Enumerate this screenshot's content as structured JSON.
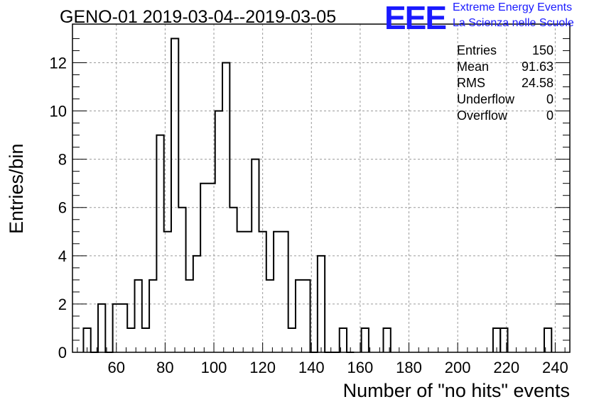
{
  "header": {
    "title": "GENO-01 2019-03-04--2019-03-05",
    "logo_mark": "EEE",
    "logo_line1": "Extreme Energy Events",
    "logo_line2": "La Scienza nelle Scuole"
  },
  "stats": [
    {
      "label": "Entries",
      "value": "150"
    },
    {
      "label": "Mean",
      "value": "91.63"
    },
    {
      "label": "RMS",
      "value": "24.58"
    },
    {
      "label": "Underflow",
      "value": "0"
    },
    {
      "label": "Overflow",
      "value": "0"
    }
  ],
  "colors": {
    "logo": "#1a1aff",
    "grid": "#9a9a9a",
    "line": "#000000"
  },
  "chart_data": {
    "type": "bar",
    "style": "step-histogram",
    "title": "GENO-01 2019-03-04--2019-03-05",
    "xlabel": "Number of \"no hits\" events",
    "ylabel": "Entries/bin",
    "xlim": [
      42,
      246
    ],
    "ylim": [
      0,
      13.6
    ],
    "grid": true,
    "bin_width": 3,
    "xticks": [
      60,
      80,
      100,
      120,
      140,
      160,
      180,
      200,
      220,
      240
    ],
    "yticks": [
      0,
      2,
      4,
      6,
      8,
      10,
      12
    ],
    "bins": [
      {
        "x": 48,
        "count": 1
      },
      {
        "x": 51,
        "count": 0
      },
      {
        "x": 54,
        "count": 2
      },
      {
        "x": 57,
        "count": 0
      },
      {
        "x": 60,
        "count": 2
      },
      {
        "x": 63,
        "count": 2
      },
      {
        "x": 66,
        "count": 1
      },
      {
        "x": 69,
        "count": 3
      },
      {
        "x": 72,
        "count": 1
      },
      {
        "x": 75,
        "count": 3
      },
      {
        "x": 78,
        "count": 9
      },
      {
        "x": 81,
        "count": 5
      },
      {
        "x": 84,
        "count": 13
      },
      {
        "x": 87,
        "count": 6
      },
      {
        "x": 90,
        "count": 3
      },
      {
        "x": 93,
        "count": 4
      },
      {
        "x": 96,
        "count": 7
      },
      {
        "x": 99,
        "count": 7
      },
      {
        "x": 102,
        "count": 10
      },
      {
        "x": 105,
        "count": 12
      },
      {
        "x": 108,
        "count": 6
      },
      {
        "x": 111,
        "count": 5
      },
      {
        "x": 114,
        "count": 5
      },
      {
        "x": 117,
        "count": 8
      },
      {
        "x": 120,
        "count": 5
      },
      {
        "x": 123,
        "count": 3
      },
      {
        "x": 126,
        "count": 5
      },
      {
        "x": 129,
        "count": 5
      },
      {
        "x": 132,
        "count": 1
      },
      {
        "x": 135,
        "count": 3
      },
      {
        "x": 138,
        "count": 3
      },
      {
        "x": 141,
        "count": 0
      },
      {
        "x": 144,
        "count": 4
      },
      {
        "x": 147,
        "count": 0
      },
      {
        "x": 150,
        "count": 0
      },
      {
        "x": 153,
        "count": 1
      },
      {
        "x": 156,
        "count": 0
      }
    ],
    "isolated_bins": [
      {
        "x": 162,
        "count": 1
      },
      {
        "x": 171,
        "count": 1
      },
      {
        "x": 216,
        "count": 1
      },
      {
        "x": 219,
        "count": 1
      },
      {
        "x": 237,
        "count": 1
      }
    ]
  }
}
